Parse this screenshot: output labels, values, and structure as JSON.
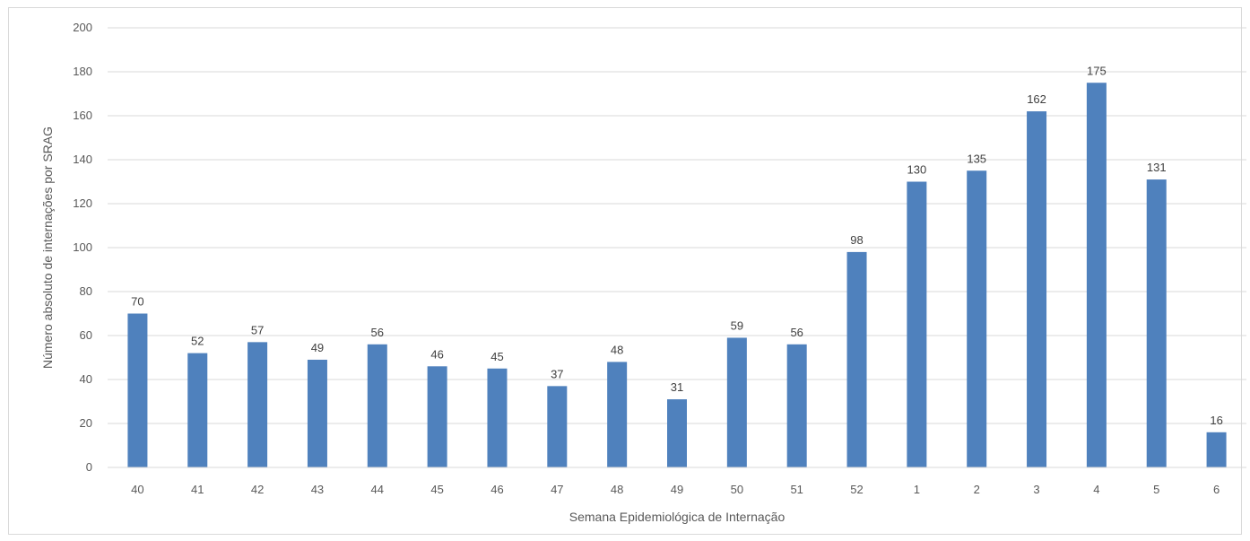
{
  "chart_data": {
    "type": "bar",
    "title": "",
    "xlabel": "Semana Epidemiológica de Internação",
    "ylabel": "Número absoluto de internações por SRAG",
    "categories": [
      "40",
      "41",
      "42",
      "43",
      "44",
      "45",
      "46",
      "47",
      "48",
      "49",
      "50",
      "51",
      "52",
      "1",
      "2",
      "3",
      "4",
      "5",
      "6"
    ],
    "values": [
      70,
      52,
      57,
      49,
      56,
      46,
      45,
      37,
      48,
      31,
      59,
      56,
      98,
      130,
      135,
      162,
      175,
      131,
      16
    ],
    "ylim": [
      0,
      200
    ],
    "yticks": [
      0,
      20,
      40,
      60,
      80,
      100,
      120,
      140,
      160,
      180,
      200
    ],
    "grid": true,
    "legend": "none",
    "bar_color": "#4f81bd",
    "grid_color": "#d9d9d9"
  }
}
